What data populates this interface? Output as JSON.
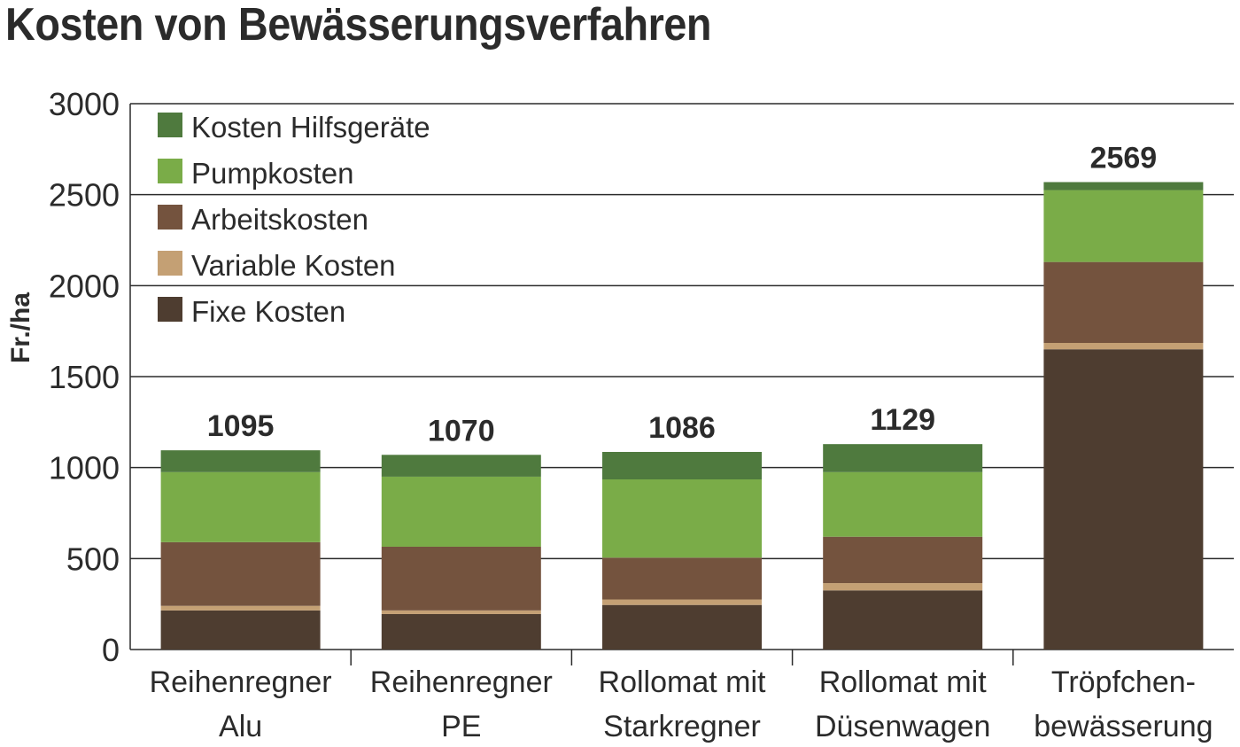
{
  "chart_data": {
    "type": "bar",
    "stacked": true,
    "title": "Kosten von Bewässerungsverfahren",
    "ylabel": "Fr./ha",
    "xlabel": "",
    "ylim": [
      0,
      3000
    ],
    "yticks": [
      0,
      500,
      1000,
      1500,
      2000,
      2500,
      3000
    ],
    "grid": true,
    "legend_position": "top-left",
    "categories": [
      [
        "Reihenregner",
        "Alu"
      ],
      [
        "Reihenregner",
        "PE"
      ],
      [
        "Rollomat mit",
        "Starkregner"
      ],
      [
        "Rollomat mit",
        "Düsenwagen"
      ],
      [
        "Tröpfchen-",
        "bewässerung"
      ]
    ],
    "totals": [
      "1095",
      "1070",
      "1086",
      "1129",
      "2569"
    ],
    "series": [
      {
        "name": "Fixe Kosten",
        "color": "#4e3d30",
        "values": [
          215,
          195,
          245,
          325,
          1650
        ]
      },
      {
        "name": "Variable Kosten",
        "color": "#c4a074",
        "values": [
          25,
          20,
          30,
          40,
          35
        ]
      },
      {
        "name": "Arbeitskosten",
        "color": "#74533e",
        "values": [
          350,
          350,
          230,
          255,
          445
        ]
      },
      {
        "name": "Pumpkosten",
        "color": "#7aac48",
        "values": [
          385,
          385,
          430,
          355,
          395
        ]
      },
      {
        "name": "Kosten Hilfsgeräte",
        "color": "#4f7a3e",
        "values": [
          120,
          120,
          151,
          154,
          44
        ]
      }
    ],
    "legend_order": [
      "Kosten Hilfsgeräte",
      "Pumpkosten",
      "Arbeitskosten",
      "Variable Kosten",
      "Fixe Kosten"
    ]
  }
}
